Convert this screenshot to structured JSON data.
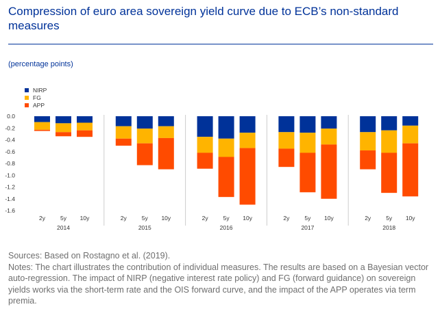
{
  "header": {
    "title": "Compression of euro area sovereign yield curve due to ECB’s non-standard measures",
    "unit": "(percentage points)"
  },
  "footer": {
    "sources": "Sources: Based on Rostagno et al. (2019).",
    "notes": "Notes: The chart illustrates the contribution of individual measures. The results are based on a Bayesian vector auto-regression. The impact of NIRP (negative interest rate policy) and FG (forward guidance) on sovereign yields works via the short-term rate and the OIS forward curve, and the impact of the APP operates via term premia."
  },
  "chart_data": {
    "type": "bar",
    "stacked": true,
    "groups": [
      "2014",
      "2015",
      "2016",
      "2017",
      "2018"
    ],
    "categories": [
      "2y",
      "5y",
      "10y"
    ],
    "series": [
      {
        "name": "NIRP",
        "color": "#003299",
        "values": [
          [
            -0.1,
            -0.12,
            -0.11
          ],
          [
            -0.17,
            -0.21,
            -0.17
          ],
          [
            -0.35,
            -0.38,
            -0.28
          ],
          [
            -0.27,
            -0.28,
            -0.21
          ],
          [
            -0.27,
            -0.24,
            -0.16
          ]
        ]
      },
      {
        "name": "FG",
        "color": "#ffb400",
        "values": [
          [
            -0.13,
            -0.15,
            -0.13
          ],
          [
            -0.21,
            -0.25,
            -0.2
          ],
          [
            -0.27,
            -0.31,
            -0.26
          ],
          [
            -0.28,
            -0.34,
            -0.27
          ],
          [
            -0.31,
            -0.38,
            -0.3
          ]
        ]
      },
      {
        "name": "APP",
        "color": "#ff4b00",
        "values": [
          [
            -0.02,
            -0.07,
            -0.11
          ],
          [
            -0.12,
            -0.37,
            -0.53
          ],
          [
            -0.27,
            -0.68,
            -0.96
          ],
          [
            -0.31,
            -0.67,
            -0.92
          ],
          [
            -0.32,
            -0.68,
            -0.9
          ]
        ]
      }
    ],
    "yticks": [
      "0.0",
      "-0.2",
      "-0.4",
      "-0.6",
      "-0.8",
      "-1.0",
      "-1.2",
      "-1.4",
      "-1.6"
    ],
    "ylim": [
      -1.6,
      0
    ],
    "legend": "top-left",
    "grid": false
  }
}
